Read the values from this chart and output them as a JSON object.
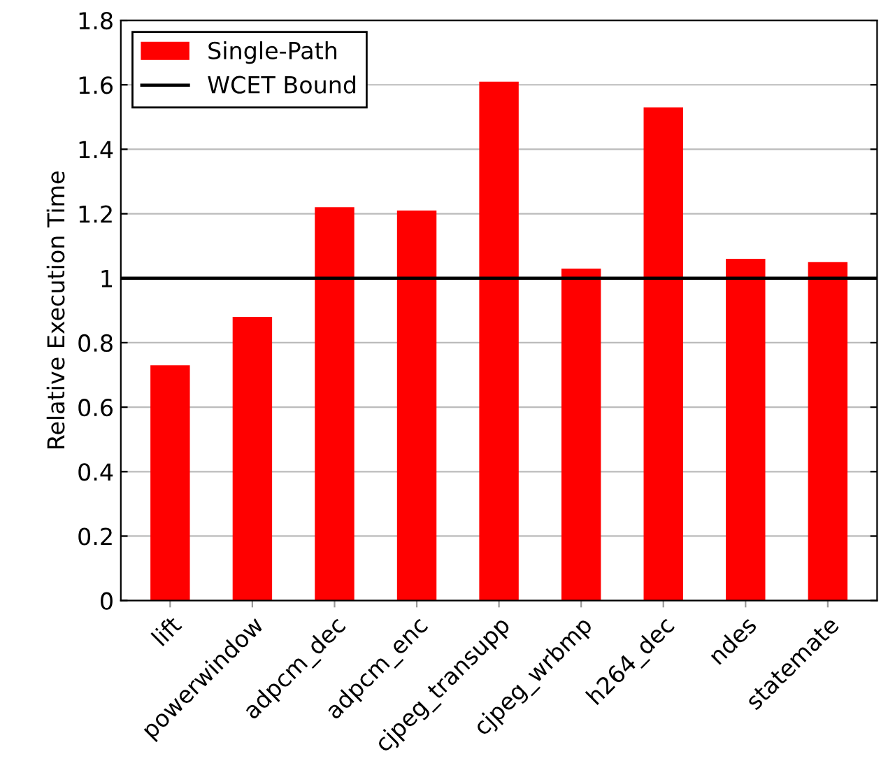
{
  "chart_data": {
    "type": "bar",
    "ylabel": "Relative Execution Time",
    "categories": [
      "lift",
      "powerwindow",
      "adpcm_dec",
      "adpcm_enc",
      "cjpeg_transupp",
      "cjpeg_wrbmp",
      "h264_dec",
      "ndes",
      "statemate"
    ],
    "series": [
      {
        "name": "Single-Path",
        "color": "#ff0000",
        "values": [
          0.73,
          0.88,
          1.22,
          1.21,
          1.61,
          1.03,
          1.53,
          1.06,
          1.05
        ]
      }
    ],
    "ylim": [
      0,
      1.8
    ],
    "yticks": [
      0,
      0.2,
      0.4,
      0.6,
      0.8,
      1,
      1.2,
      1.4,
      1.6,
      1.8
    ],
    "ref_lines": [
      {
        "axis": "y",
        "value": 1,
        "label": "WCET Bound",
        "color": "#000000",
        "line_style": "solid"
      }
    ],
    "grid": "y",
    "legend": "top left"
  }
}
